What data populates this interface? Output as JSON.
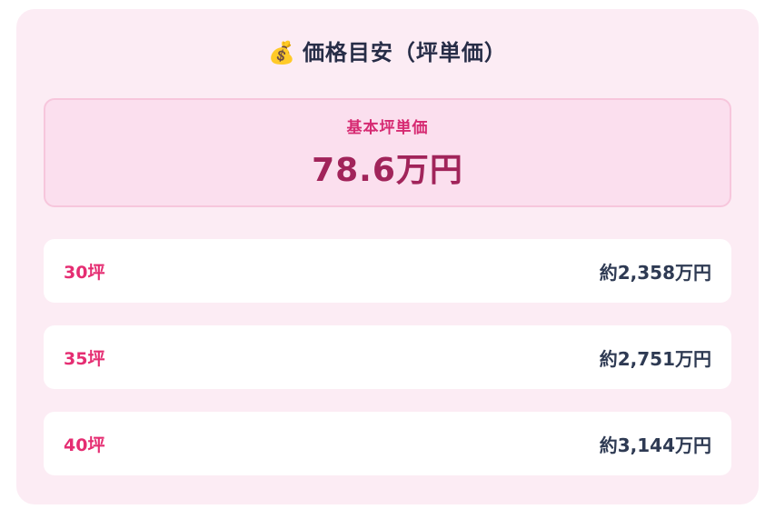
{
  "card": {
    "title": {
      "icon": "💰",
      "text": "価格目安（坪単価）"
    },
    "base_price": {
      "label": "基本坪単価",
      "value": "78.6万円"
    },
    "rows": [
      {
        "size": "30坪",
        "price": "約2,358万円"
      },
      {
        "size": "35坪",
        "price": "約2,751万円"
      },
      {
        "size": "40坪",
        "price": "約3,144万円"
      }
    ],
    "colors": {
      "card_bg": "#fcecf4",
      "box_bg": "#fbdfee",
      "box_border": "#f7c6dc",
      "title_text": "#272d47",
      "base_label": "#d62a72",
      "base_value": "#a1245a",
      "row_label": "#e52d72",
      "row_value": "#2e3a53",
      "row_bg": "#ffffff"
    }
  }
}
